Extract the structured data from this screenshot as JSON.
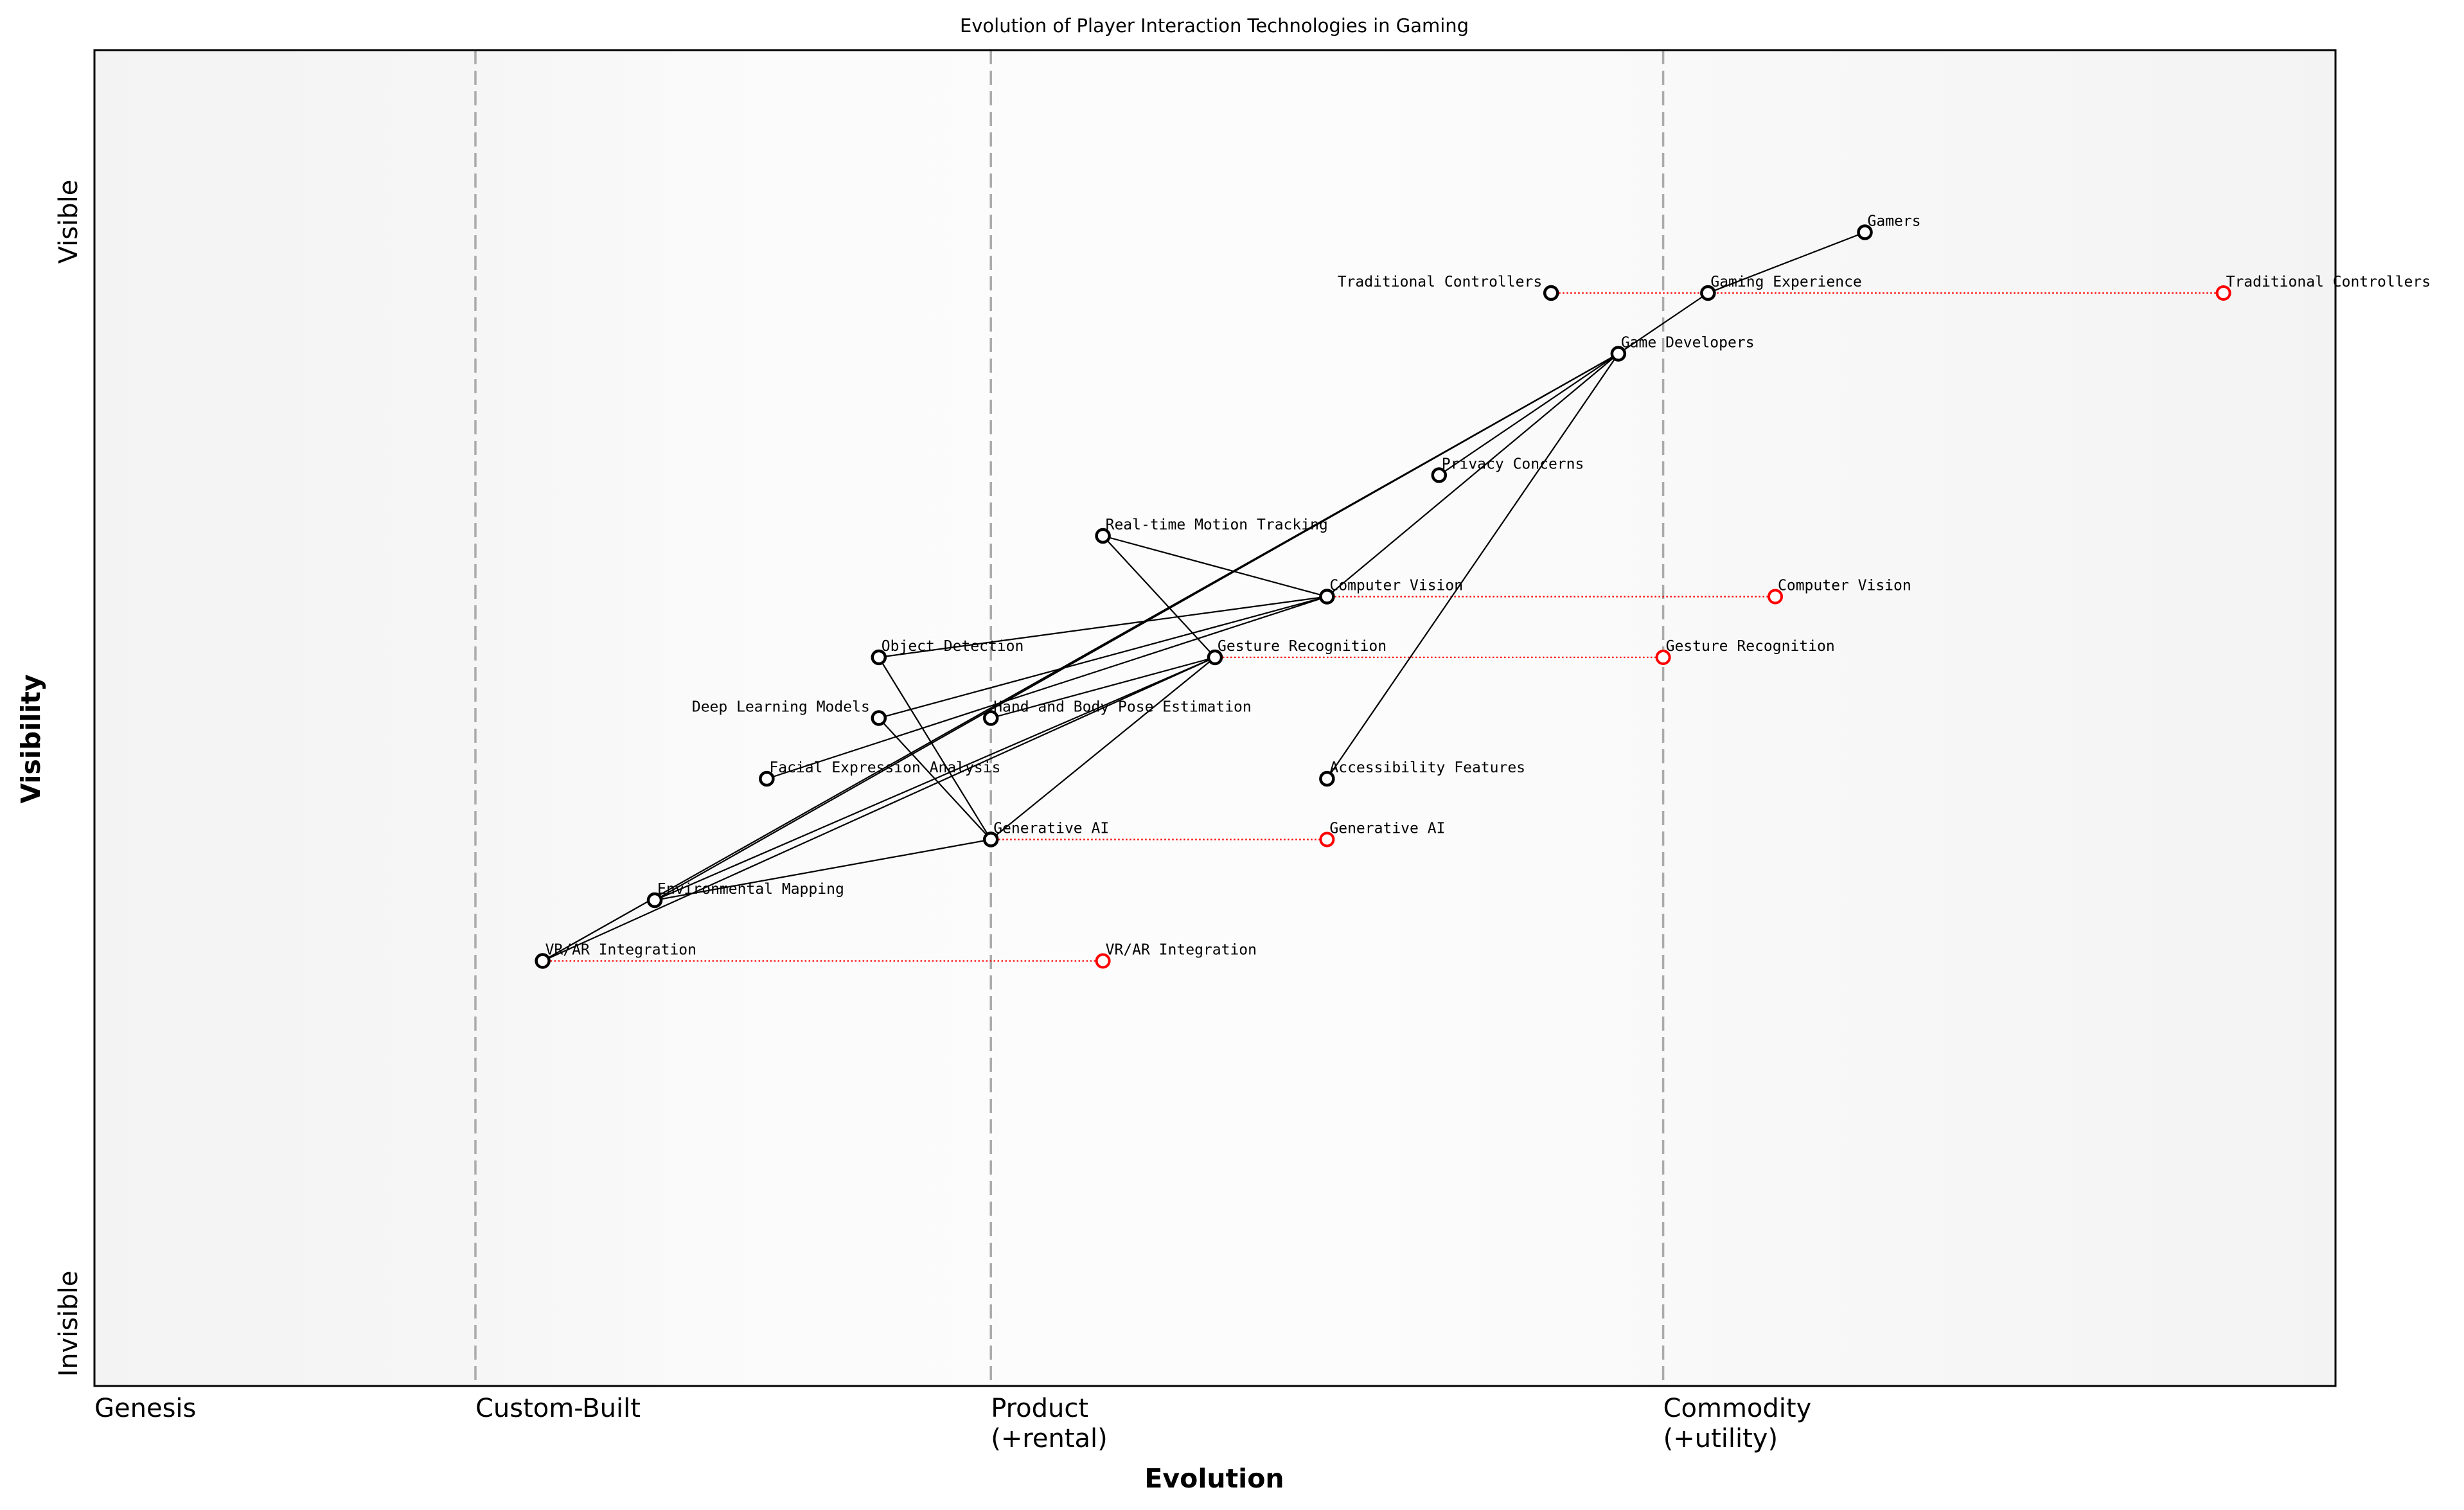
{
  "chart_data": {
    "type": "wardley-map",
    "title": "Evolution of Player Interaction Technologies in Gaming",
    "xlabel": "Evolution",
    "ylabel": "Visibility",
    "xlim": [
      0,
      1
    ],
    "ylim": [
      0,
      1.1
    ],
    "y_axis_labels": {
      "top": "Visible",
      "bottom": "Invisible"
    },
    "stages": [
      {
        "label": "Genesis",
        "x": 0
      },
      {
        "label": "Custom-Built",
        "x": 0.17
      },
      {
        "label": "Product\n(+rental)",
        "x": 0.4
      },
      {
        "label": "Commodity\n(+utility)",
        "x": 0.7
      }
    ],
    "colors": {
      "node": "#000000",
      "evolve": "#ff0000",
      "divider": "#aaaaaa",
      "band_light": "#f5f5f5",
      "band_lighter": "#fbfbfb"
    },
    "nodes": [
      {
        "name": "Gamers",
        "x": 0.79,
        "y": 0.95
      },
      {
        "name": "Traditional Controllers",
        "x": 0.65,
        "y": 0.9
      },
      {
        "name": "Gaming Experience",
        "x": 0.72,
        "y": 0.9
      },
      {
        "name": "Game Developers",
        "x": 0.68,
        "y": 0.85
      },
      {
        "name": "Privacy Concerns",
        "x": 0.6,
        "y": 0.75
      },
      {
        "name": "Real-time Motion Tracking",
        "x": 0.45,
        "y": 0.7
      },
      {
        "name": "Computer Vision",
        "x": 0.55,
        "y": 0.65
      },
      {
        "name": "Object Detection",
        "x": 0.35,
        "y": 0.6
      },
      {
        "name": "Gesture Recognition",
        "x": 0.5,
        "y": 0.6
      },
      {
        "name": "Deep Learning Models",
        "x": 0.35,
        "y": 0.55
      },
      {
        "name": "Hand and Body Pose Estimation",
        "x": 0.4,
        "y": 0.55
      },
      {
        "name": "Facial Expression Analysis",
        "x": 0.3,
        "y": 0.5
      },
      {
        "name": "Accessibility Features",
        "x": 0.55,
        "y": 0.5
      },
      {
        "name": "Generative AI",
        "x": 0.4,
        "y": 0.45
      },
      {
        "name": "Environmental Mapping",
        "x": 0.25,
        "y": 0.4
      },
      {
        "name": "VR/AR Integration",
        "x": 0.2,
        "y": 0.35
      }
    ],
    "links": [
      [
        "Gamers",
        "Gaming Experience"
      ],
      [
        "Gaming Experience",
        "Game Developers"
      ],
      [
        "Game Developers",
        "Privacy Concerns"
      ],
      [
        "Game Developers",
        "Computer Vision"
      ],
      [
        "Game Developers",
        "VR/AR Integration"
      ],
      [
        "Game Developers",
        "Environmental Mapping"
      ],
      [
        "Game Developers",
        "Accessibility Features"
      ],
      [
        "Real-time Motion Tracking",
        "Computer Vision"
      ],
      [
        "Real-time Motion Tracking",
        "Gesture Recognition"
      ],
      [
        "Computer Vision",
        "Object Detection"
      ],
      [
        "Computer Vision",
        "Deep Learning Models"
      ],
      [
        "Computer Vision",
        "Facial Expression Analysis"
      ],
      [
        "Gesture Recognition",
        "Hand and Body Pose Estimation"
      ],
      [
        "Gesture Recognition",
        "Generative AI"
      ],
      [
        "Gesture Recognition",
        "VR/AR Integration"
      ],
      [
        "Gesture Recognition",
        "Environmental Mapping"
      ],
      [
        "Generative AI",
        "Object Detection"
      ],
      [
        "Generative AI",
        "Deep Learning Models"
      ],
      [
        "Generative AI",
        "Environmental Mapping"
      ]
    ],
    "evolutions": [
      {
        "name": "Traditional Controllers",
        "from": 0.65,
        "to": 0.95,
        "y": 0.9
      },
      {
        "name": "Computer Vision",
        "from": 0.55,
        "to": 0.75,
        "y": 0.65
      },
      {
        "name": "Gesture Recognition",
        "from": 0.5,
        "to": 0.7,
        "y": 0.6
      },
      {
        "name": "Generative AI",
        "from": 0.4,
        "to": 0.55,
        "y": 0.45
      },
      {
        "name": "VR/AR Integration",
        "from": 0.2,
        "to": 0.45,
        "y": 0.35
      }
    ]
  }
}
